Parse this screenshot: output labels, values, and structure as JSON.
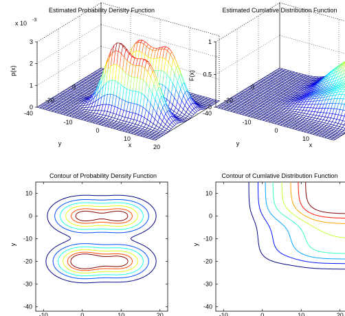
{
  "figure": {
    "background": "#ffffff",
    "colormap": "jet"
  },
  "chart_data": [
    {
      "type": "surface",
      "title": "Estimated Probability Density Function",
      "xlabel": "x",
      "ylabel": "y",
      "zlabel": "p(x)",
      "z_multiplier_label": "x 10",
      "z_multiplier_exp": "-3",
      "xlim": [
        -20,
        20
      ],
      "ylim": [
        -40,
        20
      ],
      "zlim": [
        0,
        3
      ],
      "xticks": [
        -10,
        0,
        10,
        20
      ],
      "yticks": [
        -40,
        -20,
        0
      ],
      "zticks": [
        0,
        1,
        2,
        3
      ],
      "grid": true,
      "peaks": [
        {
          "x": 0,
          "y": 0,
          "height": 2.5
        },
        {
          "x": 10,
          "y": 0,
          "height": 2.5
        },
        {
          "x": 0,
          "y": -20,
          "height": 3.0
        },
        {
          "x": 10,
          "y": -20,
          "height": 2.5
        }
      ]
    },
    {
      "type": "surface",
      "title": "Estimated Cumlative Distribution Function",
      "xlabel": "x",
      "ylabel": "y",
      "zlabel": "F(x)",
      "xlim": [
        -20,
        20
      ],
      "ylim": [
        -40,
        20
      ],
      "zlim": [
        0,
        1
      ],
      "xticks": [
        -10,
        0,
        10
      ],
      "yticks": [
        -40,
        -20,
        0
      ],
      "zticks": [
        0,
        0.5,
        1
      ],
      "grid": true
    },
    {
      "type": "contour",
      "title": "Contour of Probability Density Function",
      "xlabel": "x",
      "ylabel": "y",
      "xlim": [
        -12,
        22
      ],
      "ylim": [
        -42,
        15
      ],
      "xticks": [
        -10,
        0,
        10,
        20
      ],
      "yticks": [
        10,
        0,
        -10,
        -20,
        -30,
        -40
      ],
      "centers": [
        [
          0,
          0
        ],
        [
          10,
          0
        ],
        [
          0,
          -20
        ],
        [
          10,
          -20
        ]
      ],
      "saddle": [
        5,
        -10
      ]
    },
    {
      "type": "contour",
      "title": "Contour of Cumlative Distribution Function",
      "xlabel": "x",
      "ylabel": "y",
      "xlim": [
        -12,
        22
      ],
      "ylim": [
        -42,
        15
      ],
      "xticks": [
        -10,
        0,
        10,
        20
      ],
      "yticks": [
        10,
        0,
        -10,
        -20,
        -30,
        -40
      ],
      "levels": [
        0.1,
        0.2,
        0.3,
        0.4,
        0.5,
        0.6,
        0.7,
        0.8
      ]
    }
  ]
}
